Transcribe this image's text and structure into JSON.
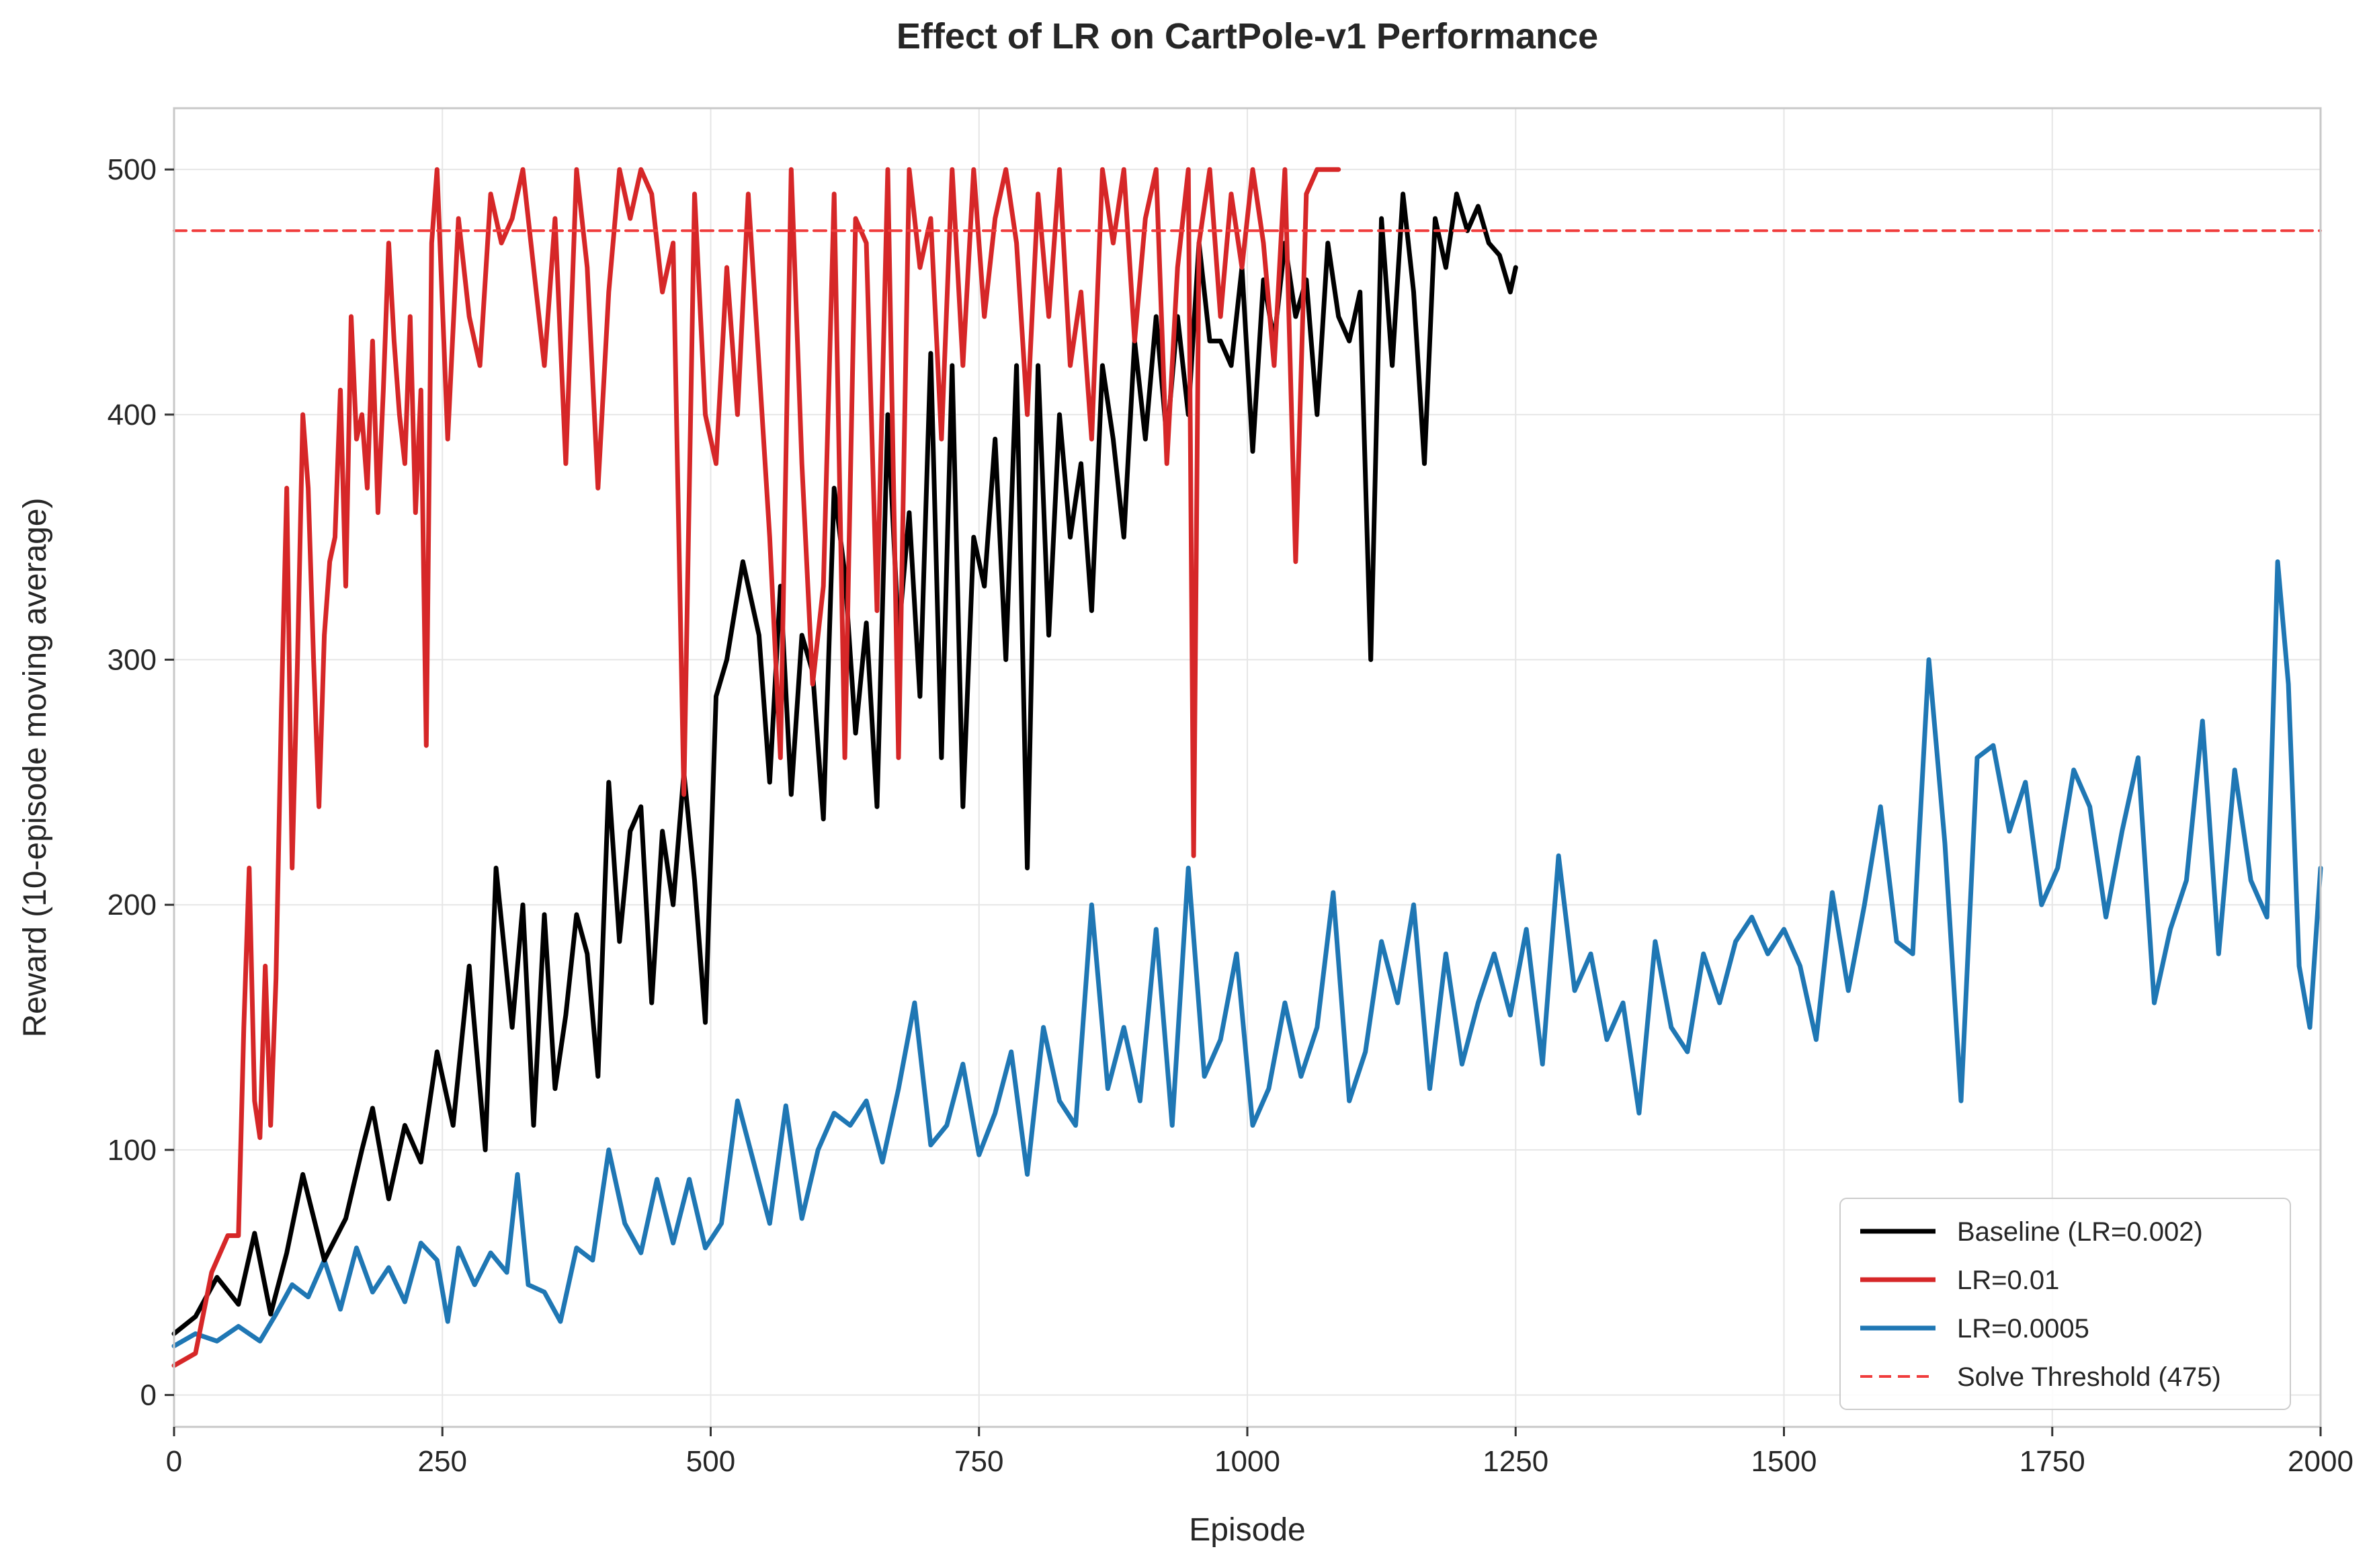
{
  "chart_data": {
    "type": "line",
    "title": "Effect of LR on CartPole-v1 Performance",
    "xlabel": "Episode",
    "ylabel": "Reward (10-episode moving average)",
    "xlim": [
      0,
      2000
    ],
    "ylim": [
      -13,
      525
    ],
    "xticks": [
      0,
      250,
      500,
      750,
      1000,
      1250,
      1500,
      1750,
      2000
    ],
    "yticks": [
      0,
      100,
      200,
      300,
      400,
      500
    ],
    "grid": true,
    "legend_position": "lower right",
    "series": [
      {
        "name": "Baseline (LR=0.002)",
        "color": "#000000",
        "x": [
          0,
          20,
          40,
          60,
          75,
          90,
          105,
          120,
          140,
          160,
          175,
          185,
          200,
          215,
          230,
          245,
          260,
          275,
          290,
          300,
          315,
          325,
          335,
          345,
          355,
          365,
          375,
          385,
          395,
          405,
          415,
          425,
          435,
          445,
          455,
          465,
          475,
          485,
          495,
          505,
          515,
          530,
          545,
          555,
          565,
          575,
          585,
          595,
          605,
          615,
          625,
          635,
          645,
          655,
          665,
          675,
          685,
          695,
          705,
          715,
          725,
          735,
          745,
          755,
          765,
          775,
          785,
          795,
          805,
          815,
          825,
          835,
          845,
          855,
          865,
          875,
          885,
          895,
          905,
          915,
          925,
          935,
          945,
          955,
          965,
          975,
          985,
          995,
          1005,
          1015,
          1025,
          1035,
          1045,
          1055,
          1065,
          1075,
          1085,
          1095,
          1105,
          1115,
          1125,
          1135,
          1145,
          1155,
          1165,
          1175,
          1185,
          1195,
          1205,
          1215,
          1225,
          1235,
          1245,
          1250
        ],
        "values": [
          25,
          32,
          48,
          37,
          66,
          33,
          58,
          90,
          55,
          72,
          100,
          117,
          80,
          110,
          95,
          140,
          110,
          175,
          100,
          215,
          150,
          200,
          110,
          196,
          125,
          155,
          196,
          180,
          130,
          250,
          185,
          230,
          240,
          160,
          230,
          200,
          254,
          210,
          152,
          285,
          300,
          340,
          310,
          250,
          330,
          245,
          310,
          295,
          235,
          370,
          335,
          270,
          315,
          240,
          400,
          310,
          360,
          285,
          425,
          260,
          420,
          240,
          350,
          330,
          390,
          300,
          420,
          215,
          420,
          310,
          400,
          350,
          380,
          320,
          420,
          390,
          350,
          430,
          390,
          440,
          390,
          440,
          400,
          470,
          430,
          430,
          420,
          460,
          385,
          455,
          430,
          470,
          440,
          455,
          400,
          470,
          440,
          430,
          450,
          300,
          480,
          420,
          490,
          450,
          380,
          480,
          460,
          490,
          475,
          485,
          470,
          465,
          450,
          460
        ]
      },
      {
        "name": "LR=0.01",
        "color": "#d62728",
        "x": [
          0,
          20,
          35,
          50,
          60,
          65,
          70,
          75,
          80,
          85,
          90,
          95,
          100,
          105,
          110,
          115,
          120,
          125,
          130,
          135,
          140,
          145,
          150,
          155,
          160,
          165,
          170,
          175,
          180,
          185,
          190,
          195,
          200,
          205,
          210,
          215,
          220,
          225,
          230,
          235,
          240,
          245,
          255,
          265,
          275,
          285,
          295,
          305,
          315,
          325,
          335,
          345,
          355,
          365,
          375,
          385,
          395,
          405,
          415,
          425,
          435,
          445,
          455,
          465,
          475,
          485,
          495,
          505,
          515,
          525,
          535,
          545,
          555,
          565,
          575,
          585,
          595,
          605,
          615,
          625,
          635,
          645,
          655,
          665,
          675,
          685,
          695,
          705,
          715,
          725,
          735,
          745,
          755,
          765,
          775,
          785,
          795,
          805,
          815,
          825,
          835,
          845,
          855,
          865,
          875,
          885,
          895,
          905,
          915,
          925,
          935,
          945,
          950,
          955,
          965,
          975,
          985,
          995,
          1005,
          1015,
          1025,
          1035,
          1045,
          1055,
          1065,
          1075,
          1085
        ],
        "values": [
          12,
          17,
          50,
          65,
          65,
          150,
          215,
          120,
          105,
          175,
          110,
          170,
          280,
          370,
          215,
          300,
          400,
          370,
          300,
          240,
          310,
          340,
          350,
          410,
          330,
          440,
          390,
          400,
          370,
          430,
          360,
          410,
          470,
          430,
          400,
          380,
          440,
          360,
          410,
          265,
          470,
          500,
          390,
          480,
          440,
          420,
          490,
          470,
          480,
          500,
          460,
          420,
          480,
          380,
          500,
          460,
          370,
          450,
          500,
          480,
          500,
          490,
          450,
          470,
          245,
          490,
          400,
          380,
          460,
          400,
          490,
          420,
          350,
          260,
          500,
          380,
          290,
          330,
          490,
          260,
          480,
          470,
          320,
          500,
          260,
          500,
          460,
          480,
          390,
          500,
          420,
          500,
          440,
          480,
          500,
          470,
          400,
          490,
          440,
          500,
          420,
          450,
          390,
          500,
          470,
          500,
          430,
          480,
          500,
          380,
          460,
          500,
          220,
          470,
          500,
          440,
          490,
          460,
          500,
          470,
          420,
          500,
          340,
          490,
          500,
          500,
          500
        ]
      },
      {
        "name": "LR=0.0005",
        "color": "#1f77b4",
        "x": [
          0,
          20,
          40,
          60,
          80,
          95,
          110,
          125,
          140,
          155,
          170,
          185,
          200,
          215,
          230,
          245,
          255,
          265,
          280,
          295,
          310,
          320,
          330,
          345,
          360,
          375,
          390,
          405,
          420,
          435,
          450,
          465,
          480,
          495,
          510,
          525,
          540,
          555,
          570,
          585,
          600,
          615,
          630,
          645,
          660,
          675,
          690,
          705,
          720,
          735,
          750,
          765,
          780,
          795,
          810,
          825,
          840,
          855,
          870,
          885,
          900,
          915,
          930,
          945,
          960,
          975,
          990,
          1005,
          1020,
          1035,
          1050,
          1065,
          1080,
          1095,
          1110,
          1125,
          1140,
          1155,
          1170,
          1185,
          1200,
          1215,
          1230,
          1245,
          1260,
          1275,
          1290,
          1305,
          1320,
          1335,
          1350,
          1365,
          1380,
          1395,
          1410,
          1425,
          1440,
          1455,
          1470,
          1485,
          1500,
          1515,
          1530,
          1545,
          1560,
          1575,
          1590,
          1605,
          1620,
          1635,
          1650,
          1665,
          1680,
          1695,
          1710,
          1725,
          1740,
          1755,
          1770,
          1785,
          1800,
          1815,
          1830,
          1845,
          1860,
          1875,
          1890,
          1905,
          1920,
          1935,
          1950,
          1960,
          1970,
          1980,
          1990,
          2000
        ],
        "values": [
          20,
          25,
          22,
          28,
          22,
          33,
          45,
          40,
          55,
          35,
          60,
          42,
          52,
          38,
          62,
          55,
          30,
          60,
          45,
          58,
          50,
          90,
          45,
          42,
          30,
          60,
          55,
          100,
          70,
          58,
          88,
          62,
          88,
          60,
          70,
          120,
          95,
          70,
          118,
          72,
          100,
          115,
          110,
          120,
          95,
          125,
          160,
          102,
          110,
          135,
          98,
          115,
          140,
          90,
          150,
          120,
          110,
          200,
          125,
          150,
          120,
          190,
          110,
          215,
          130,
          145,
          180,
          110,
          125,
          160,
          130,
          150,
          205,
          120,
          140,
          185,
          160,
          200,
          125,
          180,
          135,
          160,
          180,
          155,
          190,
          135,
          220,
          165,
          180,
          145,
          160,
          115,
          185,
          150,
          140,
          180,
          160,
          185,
          195,
          180,
          190,
          175,
          145,
          205,
          165,
          200,
          240,
          185,
          180,
          300,
          225,
          120,
          260,
          265,
          230,
          250,
          200,
          215,
          255,
          240,
          195,
          230,
          260,
          160,
          190,
          210,
          275,
          180,
          255,
          210,
          195,
          340,
          290,
          175,
          150,
          215
        ]
      },
      {
        "name": "Solve Threshold (475)",
        "color": "#f03c3c",
        "dashed": true,
        "x": [
          0,
          2000
        ],
        "values": [
          475,
          475
        ]
      }
    ]
  }
}
